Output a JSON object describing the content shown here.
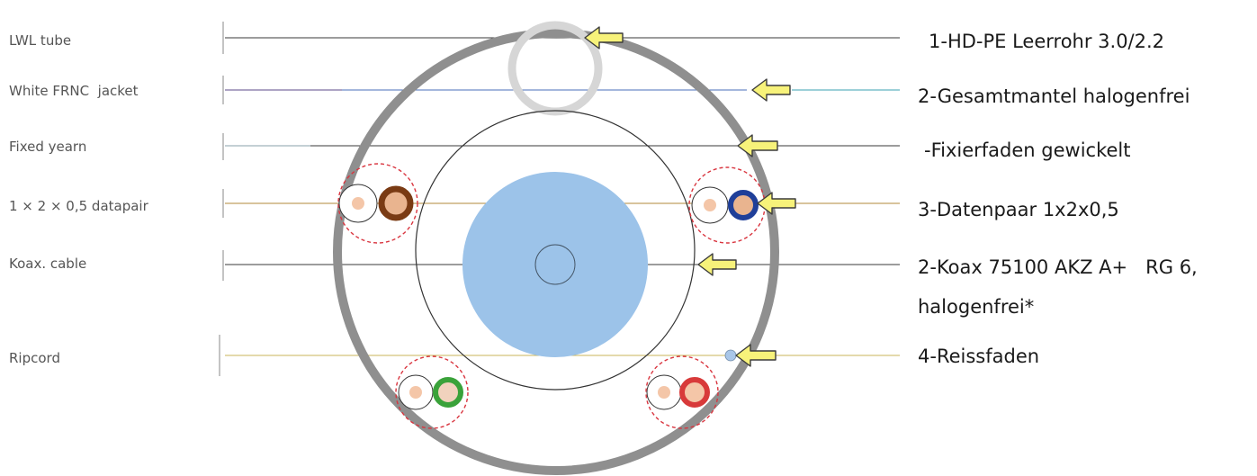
{
  "left_labels": [
    "LWL tube",
    "White FRNC  jacket",
    "Fixed yearn",
    "1 × 2 × 0,5 datapair",
    "Koax. cable",
    "Ripcord"
  ],
  "right_labels": [
    "1-HD-PE Leerrohr 3.0/2.2",
    "2-Gesamtmantel halogenfrei",
    "-Fixierfaden gewickelt",
    "3-Datenpaar 1x2x0,5",
    "2-Koax 75100 AKZ A+   RG 6,",
    "halogenfrei*",
    "4-Reissfaden"
  ],
  "colors": {
    "outer_jacket": "#8f8f8f",
    "lwl_tube": "#d6d6d6",
    "coax_dielectric": "#9cc3e9",
    "datapair_brown": "#7a3b14",
    "datapair_blue": "#1f3f99",
    "datapair_green": "#3aa23a",
    "datapair_red": "#d83a3a",
    "datapair_dashed": "#d9353f",
    "core_light": "#f4c6a8",
    "ripcord": "#a9c6e8",
    "arrow_fill": "#f7f27a"
  }
}
